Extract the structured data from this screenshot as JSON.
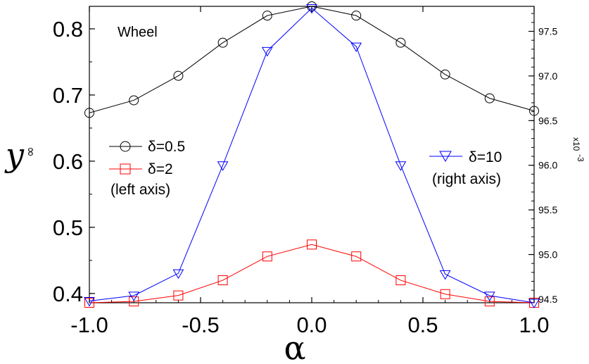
{
  "chart_data": {
    "type": "line",
    "title": "",
    "annotation": "Wheel",
    "xlabel": "α",
    "ylabel": "y",
    "ylabel_subscript": "∞",
    "right_axis_scale": "x10",
    "right_axis_scale_exp": "-3",
    "x": [
      -1.0,
      -0.8,
      -0.6,
      -0.4,
      -0.2,
      0.0,
      0.2,
      0.4,
      0.6,
      0.8,
      1.0
    ],
    "xlim": [
      -1.0,
      1.0
    ],
    "ylim_left": [
      0.386,
      0.834
    ],
    "ylim_right": [
      94.46,
      97.78
    ],
    "x_ticks": [
      "-1.0",
      "-0.5",
      "0.0",
      "0.5",
      "1.0"
    ],
    "x_tick_values": [
      -1.0,
      -0.5,
      0.0,
      0.5,
      1.0
    ],
    "y_left_ticks": [
      "0.4",
      "0.5",
      "0.6",
      "0.7",
      "0.8"
    ],
    "y_left_tick_values": [
      0.4,
      0.5,
      0.6,
      0.7,
      0.8
    ],
    "y_right_ticks": [
      "94.5",
      "95.0",
      "95.5",
      "96.0",
      "96.5",
      "97.0",
      "97.5"
    ],
    "y_right_tick_values": [
      94.5,
      95.0,
      95.5,
      96.0,
      96.5,
      97.0,
      97.5
    ],
    "series": [
      {
        "name": "δ=0.5",
        "axis": "left",
        "marker": "circle",
        "color": "#000000",
        "values": [
          0.673,
          0.692,
          0.729,
          0.779,
          0.82,
          0.834,
          0.82,
          0.779,
          0.731,
          0.695,
          0.676
        ]
      },
      {
        "name": "δ=2",
        "axis": "left",
        "marker": "square",
        "color": "#ff0000",
        "values": [
          0.386,
          0.388,
          0.397,
          0.42,
          0.456,
          0.474,
          0.456,
          0.42,
          0.399,
          0.388,
          0.386
        ]
      },
      {
        "name": "δ=10",
        "axis": "right",
        "marker": "triangle-down",
        "color": "#0000ff",
        "values": [
          94.48,
          94.54,
          94.79,
          96.0,
          97.28,
          97.76,
          97.33,
          96.0,
          94.78,
          94.54,
          94.46
        ]
      }
    ],
    "legend_left": {
      "entries": [
        "δ=0.5",
        "δ=2"
      ],
      "note": "(left axis)"
    },
    "legend_right": {
      "entries": [
        "δ=10"
      ],
      "note": "(right axis)"
    },
    "grid": false
  }
}
